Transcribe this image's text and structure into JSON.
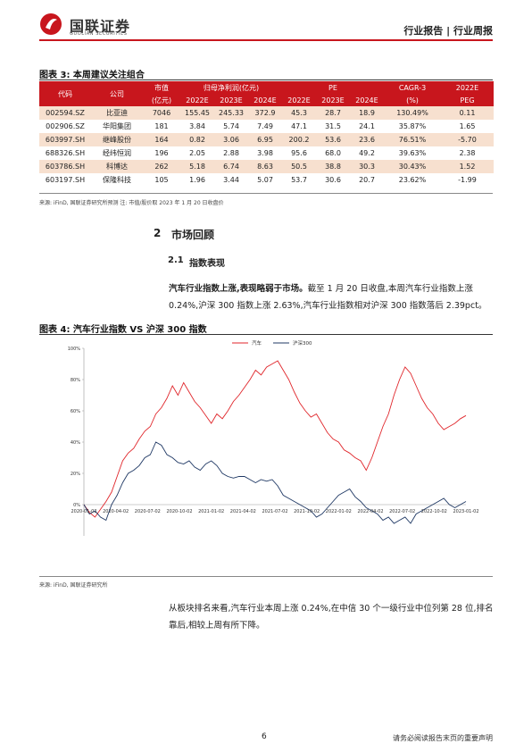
{
  "header": {
    "brand_cn": "国联证券",
    "brand_en": "GUOLIAN SECURITIES",
    "report_type": "行业报告 | 行业周报"
  },
  "table": {
    "caption": "图表 3: 本周建议关注组合",
    "headers": {
      "code": "代码",
      "company": "公司",
      "mcap_line1": "市值",
      "mcap_line2": "(亿元)",
      "profit": "归母净利润(亿元)",
      "pe": "PE",
      "cagr_line1": "CAGR-3",
      "cagr_line2": "(%)",
      "peg_line1": "2022E",
      "peg_line2": "PEG",
      "y1": "2022E",
      "y2": "2023E",
      "y3": "2024E"
    },
    "rows": [
      {
        "code": "002594.SZ",
        "company": "比亚迪",
        "mcap": "7046",
        "p1": "155.45",
        "p2": "245.33",
        "p3": "372.9",
        "pe1": "45.3",
        "pe2": "28.7",
        "pe3": "18.9",
        "cagr": "130.49%",
        "peg": "0.11"
      },
      {
        "code": "002906.SZ",
        "company": "华阳集团",
        "mcap": "181",
        "p1": "3.84",
        "p2": "5.74",
        "p3": "7.49",
        "pe1": "47.1",
        "pe2": "31.5",
        "pe3": "24.1",
        "cagr": "35.87%",
        "peg": "1.65"
      },
      {
        "code": "603997.SH",
        "company": "继峰股份",
        "mcap": "164",
        "p1": "0.82",
        "p2": "3.06",
        "p3": "6.95",
        "pe1": "200.2",
        "pe2": "53.6",
        "pe3": "23.6",
        "cagr": "76.51%",
        "peg": "-5.70"
      },
      {
        "code": "688326.SH",
        "company": "经纬恒润",
        "mcap": "196",
        "p1": "2.05",
        "p2": "2.88",
        "p3": "3.98",
        "pe1": "95.6",
        "pe2": "68.0",
        "pe3": "49.2",
        "cagr": "39.63%",
        "peg": "2.38"
      },
      {
        "code": "603786.SH",
        "company": "科博达",
        "mcap": "262",
        "p1": "5.18",
        "p2": "6.74",
        "p3": "8.63",
        "pe1": "50.5",
        "pe2": "38.8",
        "pe3": "30.3",
        "cagr": "30.43%",
        "peg": "1.52"
      },
      {
        "code": "603197.SH",
        "company": "保隆科技",
        "mcap": "105",
        "p1": "1.96",
        "p2": "3.44",
        "p3": "5.07",
        "pe1": "53.7",
        "pe2": "30.6",
        "pe3": "20.7",
        "cagr": "23.62%",
        "peg": "-1.99"
      }
    ],
    "source": "来源: iFinD, 国联证券研究所预测 注: 市值/股价取 2023 年 1 月 20 日收盘价"
  },
  "section": {
    "num": "2",
    "title": "市场回顾"
  },
  "subsection": {
    "num": "2.1",
    "title": "指数表现"
  },
  "para1": {
    "bold": "汽车行业指数上涨,表现略弱于市场。",
    "rest": "截至 1 月 20 日收盘,本周汽车行业指数上涨 0.24%,沪深 300 指数上涨 2.63%,汽车行业指数相对沪深 300 指数落后 2.39pct。"
  },
  "chart_caption": "图表 4: 汽车行业指数 VS 沪深 300 指数",
  "chart_source": "来源: iFinD, 国联证券研究所",
  "para2": "从板块排名来看,汽车行业本周上涨 0.24%,在中信 30 个一级行业中位列第 28 位,排名靠后,相较上周有所下降。",
  "chart_data": {
    "type": "line",
    "x_ticks": [
      "2020-01-02",
      "2020-04-02",
      "2020-07-02",
      "2020-10-02",
      "2021-01-02",
      "2021-04-02",
      "2021-07-02",
      "2021-10-02",
      "2022-01-02",
      "2022-04-02",
      "2022-07-02",
      "2022-10-02",
      "2023-01-02"
    ],
    "y_ticks": [
      "0%",
      "20%",
      "40%",
      "60%",
      "80%",
      "100%"
    ],
    "ylim": [
      -20,
      100
    ],
    "series": [
      {
        "name": "汽车",
        "color": "#e0262b",
        "values": [
          0,
          -5,
          -8,
          -3,
          2,
          8,
          18,
          28,
          33,
          36,
          42,
          47,
          50,
          58,
          62,
          68,
          76,
          70,
          78,
          72,
          66,
          62,
          57,
          52,
          58,
          55,
          60,
          66,
          70,
          75,
          80,
          86,
          83,
          88,
          90,
          92,
          86,
          80,
          72,
          65,
          60,
          56,
          58,
          52,
          46,
          42,
          40,
          35,
          33,
          30,
          28,
          22,
          30,
          40,
          50,
          58,
          70,
          80,
          88,
          84,
          76,
          68,
          62,
          58,
          52,
          48,
          50,
          52,
          55,
          57
        ]
      },
      {
        "name": "沪深300",
        "color": "#1f3864",
        "values": [
          0,
          -6,
          -4,
          -8,
          -10,
          0,
          6,
          14,
          20,
          22,
          25,
          30,
          32,
          40,
          38,
          32,
          30,
          27,
          26,
          28,
          24,
          22,
          26,
          28,
          25,
          20,
          18,
          17,
          18,
          18,
          16,
          14,
          16,
          15,
          16,
          12,
          6,
          4,
          2,
          0,
          -2,
          -4,
          -8,
          -6,
          -2,
          2,
          6,
          8,
          10,
          5,
          2,
          -2,
          -4,
          -6,
          -10,
          -8,
          -12,
          -10,
          -8,
          -12,
          -6,
          -4,
          -2,
          0,
          2,
          4,
          0,
          -2,
          0,
          2
        ]
      }
    ]
  },
  "footer": {
    "page": "6",
    "disclaimer": "请务必阅读报告末页的重要声明"
  }
}
